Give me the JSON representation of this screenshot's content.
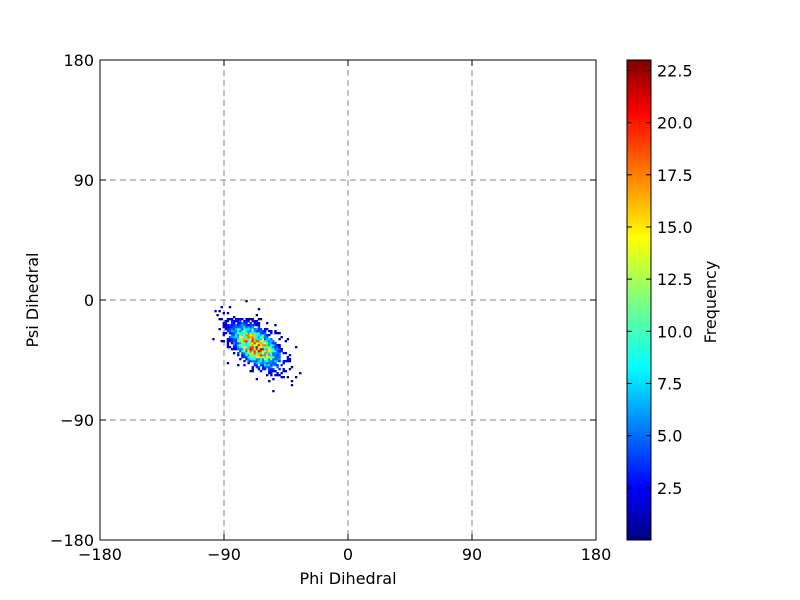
{
  "chart_data": {
    "type": "heatmap",
    "title": "",
    "xlabel": "Phi Dihedral",
    "ylabel": "Psi Dihedral",
    "xlim": [
      -180,
      180
    ],
    "ylim": [
      -180,
      180
    ],
    "x_ticks": [
      -180,
      -90,
      0,
      90,
      180
    ],
    "y_ticks": [
      -180,
      -90,
      0,
      90,
      180
    ],
    "x_tick_labels": [
      "−180",
      "−90",
      "0",
      "90",
      "180"
    ],
    "y_tick_labels": [
      "−180",
      "−90",
      "0",
      "90",
      "180"
    ],
    "grid": true,
    "grid_style": "dashed",
    "colormap": "jet",
    "colorbar": {
      "label": "Frequency",
      "min": 0,
      "max": 23,
      "ticks": [
        2.5,
        5.0,
        7.5,
        10.0,
        12.5,
        15.0,
        17.5,
        20.0,
        22.5
      ],
      "tick_labels": [
        "2.5",
        "5.0",
        "7.5",
        "10.0",
        "12.5",
        "15.0",
        "17.5",
        "20.0",
        "22.5"
      ]
    },
    "distribution": {
      "center_phi": -68,
      "center_psi": -35,
      "sigma_major": 13,
      "sigma_minor": 7,
      "major_axis_angle_deg": -42,
      "peak_frequency": 23,
      "phi_range": [
        -100,
        -35
      ],
      "psi_range": [
        -75,
        8
      ]
    }
  }
}
